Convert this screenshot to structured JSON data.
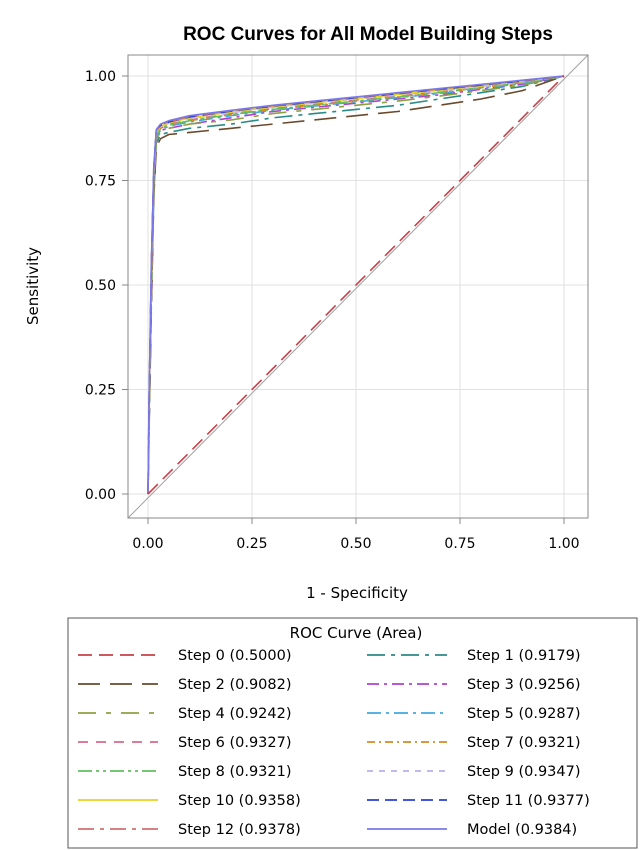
{
  "chart_data": {
    "type": "line",
    "title": "ROC Curves for All Model Building Steps",
    "xlabel": "1 - Specificity",
    "ylabel": "Sensitivity",
    "xlim": [
      0,
      1
    ],
    "ylim": [
      0,
      1
    ],
    "xticks": [
      "0.00",
      "0.25",
      "0.50",
      "0.75",
      "1.00"
    ],
    "yticks": [
      "0.00",
      "0.25",
      "0.50",
      "0.75",
      "1.00"
    ],
    "grid": true,
    "legend": {
      "title": "ROC Curve (Area)",
      "placement": "bottom"
    },
    "reference_line": {
      "x": [
        0,
        1
      ],
      "y": [
        0,
        1
      ],
      "color": "#a0a0a0"
    },
    "series": [
      {
        "name": "Step 0",
        "label": "Step 0  (0.5000)",
        "color": "#c8404a",
        "dash": "14,7",
        "x": [
          0,
          1
        ],
        "y": [
          0,
          1
        ]
      },
      {
        "name": "Step 1",
        "label": "Step 1  (0.9179)",
        "color": "#2b8b86",
        "dash": "18,6,4,6",
        "x": [
          0,
          0.003,
          0.008,
          0.014,
          0.02,
          0.03,
          0.05,
          0.1,
          0.2,
          0.3,
          0.4,
          0.5,
          0.6,
          0.7,
          0.8,
          0.9,
          1
        ],
        "y": [
          0,
          0.18,
          0.45,
          0.72,
          0.84,
          0.86,
          0.865,
          0.875,
          0.885,
          0.9,
          0.91,
          0.92,
          0.93,
          0.945,
          0.96,
          0.975,
          1
        ]
      },
      {
        "name": "Step 2",
        "label": "Step 2  (0.9082)",
        "color": "#6b4a2e",
        "dash": "22,10",
        "x": [
          0,
          0.003,
          0.008,
          0.014,
          0.02,
          0.03,
          0.05,
          0.1,
          0.2,
          0.3,
          0.4,
          0.5,
          0.6,
          0.7,
          0.8,
          0.9,
          1
        ],
        "y": [
          0,
          0.17,
          0.44,
          0.71,
          0.83,
          0.85,
          0.86,
          0.865,
          0.875,
          0.885,
          0.895,
          0.905,
          0.915,
          0.93,
          0.945,
          0.965,
          1
        ]
      },
      {
        "name": "Step 3",
        "label": "Step 3  (0.9256)",
        "color": "#b040d0",
        "dash": "12,5,3,5",
        "x": [
          0,
          0.003,
          0.008,
          0.014,
          0.02,
          0.03,
          0.05,
          0.1,
          0.2,
          0.3,
          0.4,
          0.5,
          0.6,
          0.7,
          0.8,
          0.9,
          1
        ],
        "y": [
          0,
          0.2,
          0.48,
          0.74,
          0.85,
          0.87,
          0.875,
          0.885,
          0.9,
          0.915,
          0.925,
          0.935,
          0.945,
          0.955,
          0.968,
          0.98,
          1
        ]
      },
      {
        "name": "Step 4",
        "label": "Step 4  (0.9242)",
        "color": "#8ea040",
        "dash": "18,10,5,10",
        "x": [
          0,
          0.003,
          0.008,
          0.014,
          0.02,
          0.03,
          0.05,
          0.1,
          0.2,
          0.3,
          0.4,
          0.5,
          0.6,
          0.7,
          0.8,
          0.9,
          1
        ],
        "y": [
          0,
          0.2,
          0.47,
          0.73,
          0.85,
          0.865,
          0.875,
          0.885,
          0.895,
          0.91,
          0.92,
          0.93,
          0.94,
          0.952,
          0.965,
          0.978,
          1
        ]
      },
      {
        "name": "Step 5",
        "label": "Step 5  (0.9287)",
        "color": "#40a8e0",
        "dash": "14,5,3,5",
        "x": [
          0,
          0.003,
          0.008,
          0.014,
          0.02,
          0.03,
          0.05,
          0.1,
          0.2,
          0.3,
          0.4,
          0.5,
          0.6,
          0.7,
          0.8,
          0.9,
          1
        ],
        "y": [
          0,
          0.21,
          0.5,
          0.75,
          0.855,
          0.87,
          0.88,
          0.89,
          0.905,
          0.918,
          0.928,
          0.938,
          0.948,
          0.958,
          0.97,
          0.982,
          1
        ]
      },
      {
        "name": "Step 6",
        "label": "Step 6  (0.9327)",
        "color": "#d86a8a",
        "dash": "10,8",
        "x": [
          0,
          0.003,
          0.008,
          0.014,
          0.02,
          0.03,
          0.05,
          0.1,
          0.2,
          0.3,
          0.4,
          0.5,
          0.6,
          0.7,
          0.8,
          0.9,
          1
        ],
        "y": [
          0,
          0.22,
          0.52,
          0.76,
          0.86,
          0.875,
          0.885,
          0.895,
          0.91,
          0.922,
          0.932,
          0.942,
          0.952,
          0.962,
          0.972,
          0.984,
          1
        ]
      },
      {
        "name": "Step 7",
        "label": "Step 7  (0.9321)",
        "color": "#d88a20",
        "dash": "8,4,2,4",
        "x": [
          0,
          0.003,
          0.008,
          0.014,
          0.02,
          0.03,
          0.05,
          0.1,
          0.2,
          0.3,
          0.4,
          0.5,
          0.6,
          0.7,
          0.8,
          0.9,
          1
        ],
        "y": [
          0,
          0.22,
          0.51,
          0.76,
          0.86,
          0.875,
          0.883,
          0.893,
          0.908,
          0.92,
          0.93,
          0.94,
          0.95,
          0.96,
          0.972,
          0.984,
          1
        ]
      },
      {
        "name": "Step 8",
        "label": "Step 8  (0.9321)",
        "color": "#60c060",
        "dash": "14,4,3,4,3,4",
        "x": [
          0,
          0.003,
          0.008,
          0.014,
          0.02,
          0.03,
          0.05,
          0.1,
          0.2,
          0.3,
          0.4,
          0.5,
          0.6,
          0.7,
          0.8,
          0.9,
          1
        ],
        "y": [
          0,
          0.22,
          0.51,
          0.755,
          0.858,
          0.874,
          0.882,
          0.893,
          0.908,
          0.92,
          0.93,
          0.94,
          0.95,
          0.96,
          0.972,
          0.984,
          1
        ]
      },
      {
        "name": "Step 9",
        "label": "Step 9  (0.9347)",
        "color": "#b8b0f0",
        "dash": "6,6",
        "x": [
          0,
          0.003,
          0.008,
          0.014,
          0.02,
          0.03,
          0.05,
          0.1,
          0.2,
          0.3,
          0.4,
          0.5,
          0.6,
          0.7,
          0.8,
          0.9,
          1
        ],
        "y": [
          0,
          0.23,
          0.53,
          0.77,
          0.865,
          0.878,
          0.887,
          0.898,
          0.912,
          0.925,
          0.935,
          0.945,
          0.954,
          0.964,
          0.974,
          0.986,
          1
        ]
      },
      {
        "name": "Step 10",
        "label": "Step 10  (0.9358)",
        "color": "#e8d020",
        "dash": "",
        "x": [
          0,
          0.003,
          0.008,
          0.014,
          0.02,
          0.03,
          0.05,
          0.1,
          0.2,
          0.3,
          0.4,
          0.5,
          0.6,
          0.7,
          0.8,
          0.9,
          1
        ],
        "y": [
          0,
          0.23,
          0.53,
          0.77,
          0.865,
          0.88,
          0.888,
          0.9,
          0.914,
          0.926,
          0.936,
          0.946,
          0.956,
          0.966,
          0.976,
          0.987,
          1
        ]
      },
      {
        "name": "Step 11",
        "label": "Step 11  (0.9377)",
        "color": "#2a3ed8",
        "dash": "12,6",
        "x": [
          0,
          0.003,
          0.008,
          0.014,
          0.02,
          0.03,
          0.05,
          0.1,
          0.2,
          0.3,
          0.4,
          0.5,
          0.6,
          0.7,
          0.8,
          0.9,
          1
        ],
        "y": [
          0,
          0.24,
          0.54,
          0.78,
          0.87,
          0.882,
          0.89,
          0.902,
          0.916,
          0.928,
          0.938,
          0.948,
          0.958,
          0.968,
          0.978,
          0.988,
          1
        ]
      },
      {
        "name": "Step 12",
        "label": "Step 12  (0.9378)",
        "color": "#d07070",
        "dash": "16,6,4,6",
        "x": [
          0,
          0.003,
          0.008,
          0.014,
          0.02,
          0.03,
          0.05,
          0.1,
          0.2,
          0.3,
          0.4,
          0.5,
          0.6,
          0.7,
          0.8,
          0.9,
          1
        ],
        "y": [
          0,
          0.24,
          0.54,
          0.78,
          0.87,
          0.883,
          0.891,
          0.903,
          0.917,
          0.929,
          0.939,
          0.949,
          0.959,
          0.969,
          0.979,
          0.989,
          1
        ]
      },
      {
        "name": "Model",
        "label": "Model  (0.9384)",
        "color": "#7a78e8",
        "dash": "",
        "x": [
          0,
          0.003,
          0.008,
          0.014,
          0.02,
          0.03,
          0.05,
          0.1,
          0.2,
          0.3,
          0.4,
          0.5,
          0.6,
          0.7,
          0.8,
          0.9,
          1
        ],
        "y": [
          0,
          0.245,
          0.545,
          0.785,
          0.872,
          0.885,
          0.893,
          0.905,
          0.918,
          0.93,
          0.94,
          0.95,
          0.96,
          0.97,
          0.98,
          0.99,
          1
        ]
      }
    ]
  }
}
